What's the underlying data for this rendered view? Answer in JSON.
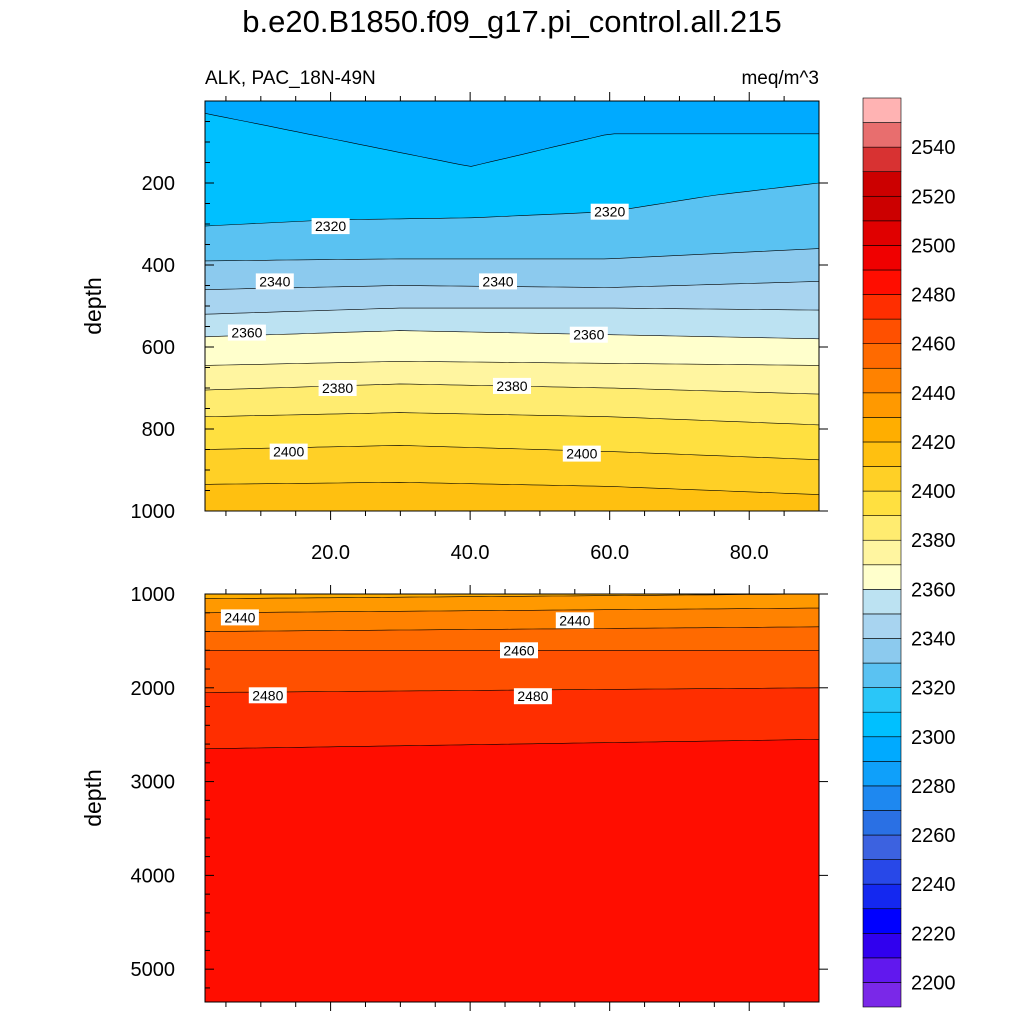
{
  "title": "b.e20.B1850.f09_g17.pi_control.all.215",
  "chart_data": {
    "type": "contour",
    "variable_label": "ALK, PAC_18N-49N",
    "units": "meq/m^3",
    "ylabel": "depth",
    "xlim": [
      2,
      90
    ],
    "x_ticks": [
      "20.0",
      "40.0",
      "60.0",
      "80.0"
    ],
    "x_tick_values": [
      20,
      40,
      60,
      80
    ],
    "top_panel": {
      "ylim": [
        0,
        1000
      ],
      "y_reversed": true,
      "y_ticks": [
        "200",
        "400",
        "600",
        "800",
        "1000"
      ],
      "y_tick_values": [
        200,
        400,
        600,
        800,
        1000
      ],
      "contours": [
        {
          "level": 2300,
          "depth_profile": [
            [
              2,
              30
            ],
            [
              40,
              160
            ],
            [
              60,
              80
            ],
            [
              90,
              80
            ]
          ]
        },
        {
          "level": 2320,
          "depth_profile": [
            [
              2,
              305
            ],
            [
              20,
              290
            ],
            [
              40,
              285
            ],
            [
              60,
              270
            ],
            [
              75,
              230
            ],
            [
              90,
              200
            ]
          ]
        },
        {
          "level": 2330,
          "depth_profile": [
            [
              2,
              390
            ],
            [
              30,
              385
            ],
            [
              60,
              385
            ],
            [
              90,
              360
            ]
          ]
        },
        {
          "level": 2340,
          "depth_profile": [
            [
              2,
              460
            ],
            [
              30,
              450
            ],
            [
              60,
              455
            ],
            [
              90,
              440
            ]
          ]
        },
        {
          "level": 2350,
          "depth_profile": [
            [
              2,
              520
            ],
            [
              30,
              505
            ],
            [
              60,
              505
            ],
            [
              90,
              510
            ]
          ]
        },
        {
          "level": 2360,
          "depth_profile": [
            [
              2,
              575
            ],
            [
              30,
              560
            ],
            [
              60,
              570
            ],
            [
              90,
              580
            ]
          ]
        },
        {
          "level": 2370,
          "depth_profile": [
            [
              2,
              645
            ],
            [
              30,
              635
            ],
            [
              60,
              640
            ],
            [
              90,
              645
            ]
          ]
        },
        {
          "level": 2380,
          "depth_profile": [
            [
              2,
              705
            ],
            [
              30,
              690
            ],
            [
              60,
              700
            ],
            [
              90,
              715
            ]
          ]
        },
        {
          "level": 2390,
          "depth_profile": [
            [
              2,
              770
            ],
            [
              30,
              760
            ],
            [
              60,
              770
            ],
            [
              90,
              790
            ]
          ]
        },
        {
          "level": 2400,
          "depth_profile": [
            [
              2,
              850
            ],
            [
              30,
              840
            ],
            [
              60,
              855
            ],
            [
              90,
              875
            ]
          ]
        },
        {
          "level": 2410,
          "depth_profile": [
            [
              2,
              935
            ],
            [
              30,
              930
            ],
            [
              60,
              940
            ],
            [
              90,
              960
            ]
          ]
        }
      ],
      "labels": [
        {
          "text": "2320",
          "x": 20,
          "depth": 305
        },
        {
          "text": "2320",
          "x": 60,
          "depth": 270
        },
        {
          "text": "2340",
          "x": 12,
          "depth": 440
        },
        {
          "text": "2340",
          "x": 44,
          "depth": 440
        },
        {
          "text": "2360",
          "x": 8,
          "depth": 565
        },
        {
          "text": "2360",
          "x": 57,
          "depth": 570
        },
        {
          "text": "2380",
          "x": 21,
          "depth": 700
        },
        {
          "text": "2380",
          "x": 46,
          "depth": 695
        },
        {
          "text": "2400",
          "x": 14,
          "depth": 855
        },
        {
          "text": "2400",
          "x": 56,
          "depth": 860
        }
      ]
    },
    "bottom_panel": {
      "ylim": [
        1000,
        5350
      ],
      "y_reversed": true,
      "y_ticks": [
        "1000",
        "2000",
        "3000",
        "4000",
        "5000"
      ],
      "y_tick_values": [
        1000,
        2000,
        3000,
        4000,
        5000
      ],
      "contours": [
        {
          "level": 2430,
          "depth_profile": [
            [
              2,
              1050
            ],
            [
              90,
              1000
            ]
          ]
        },
        {
          "level": 2440,
          "depth_profile": [
            [
              2,
              1200
            ],
            [
              90,
              1150
            ]
          ]
        },
        {
          "level": 2450,
          "depth_profile": [
            [
              2,
              1400
            ],
            [
              90,
              1350
            ]
          ]
        },
        {
          "level": 2460,
          "depth_profile": [
            [
              2,
              1600
            ],
            [
              90,
              1600
            ]
          ]
        },
        {
          "level": 2470,
          "depth_profile": [
            [
              2,
              2050
            ],
            [
              90,
              2000
            ]
          ]
        },
        {
          "level": 2480,
          "depth_profile": [
            [
              2,
              2650
            ],
            [
              90,
              2550
            ]
          ]
        }
      ],
      "labels": [
        {
          "text": "2440",
          "x": 7,
          "depth": 1250
        },
        {
          "text": "2440",
          "x": 55,
          "depth": 1280
        },
        {
          "text": "2460",
          "x": 47,
          "depth": 1600
        },
        {
          "text": "2480",
          "x": 11,
          "depth": 2080
        },
        {
          "text": "2480",
          "x": 49,
          "depth": 2090
        }
      ]
    },
    "colorbar": {
      "labels": [
        "2200",
        "2220",
        "2240",
        "2260",
        "2280",
        "2300",
        "2320",
        "2340",
        "2360",
        "2380",
        "2400",
        "2420",
        "2440",
        "2460",
        "2480",
        "2500",
        "2520",
        "2540"
      ],
      "level_min": 2190,
      "level_max": 2560,
      "level_step": 10,
      "colors": [
        "#7a28e8",
        "#6118ee",
        "#3000ee",
        "#0000ff",
        "#1428f0",
        "#2848e8",
        "#3c62e0",
        "#2a70e4",
        "#1e88f0",
        "#0fa0fa",
        "#00aaff",
        "#00c0ff",
        "#2ac6f8",
        "#5ac2f2",
        "#8ccaee",
        "#a8d4f0",
        "#bce2f2",
        "#ffffcc",
        "#fff5a0",
        "#ffec70",
        "#ffe040",
        "#ffd026",
        "#ffc010",
        "#ffae00",
        "#ff9900",
        "#ff8200",
        "#ff6a00",
        "#ff5000",
        "#ff2e00",
        "#ff0d00",
        "#f00000",
        "#e00000",
        "#cc0000",
        "#cc0000",
        "#d83232",
        "#e86e6e",
        "#ffb3b3"
      ]
    }
  }
}
